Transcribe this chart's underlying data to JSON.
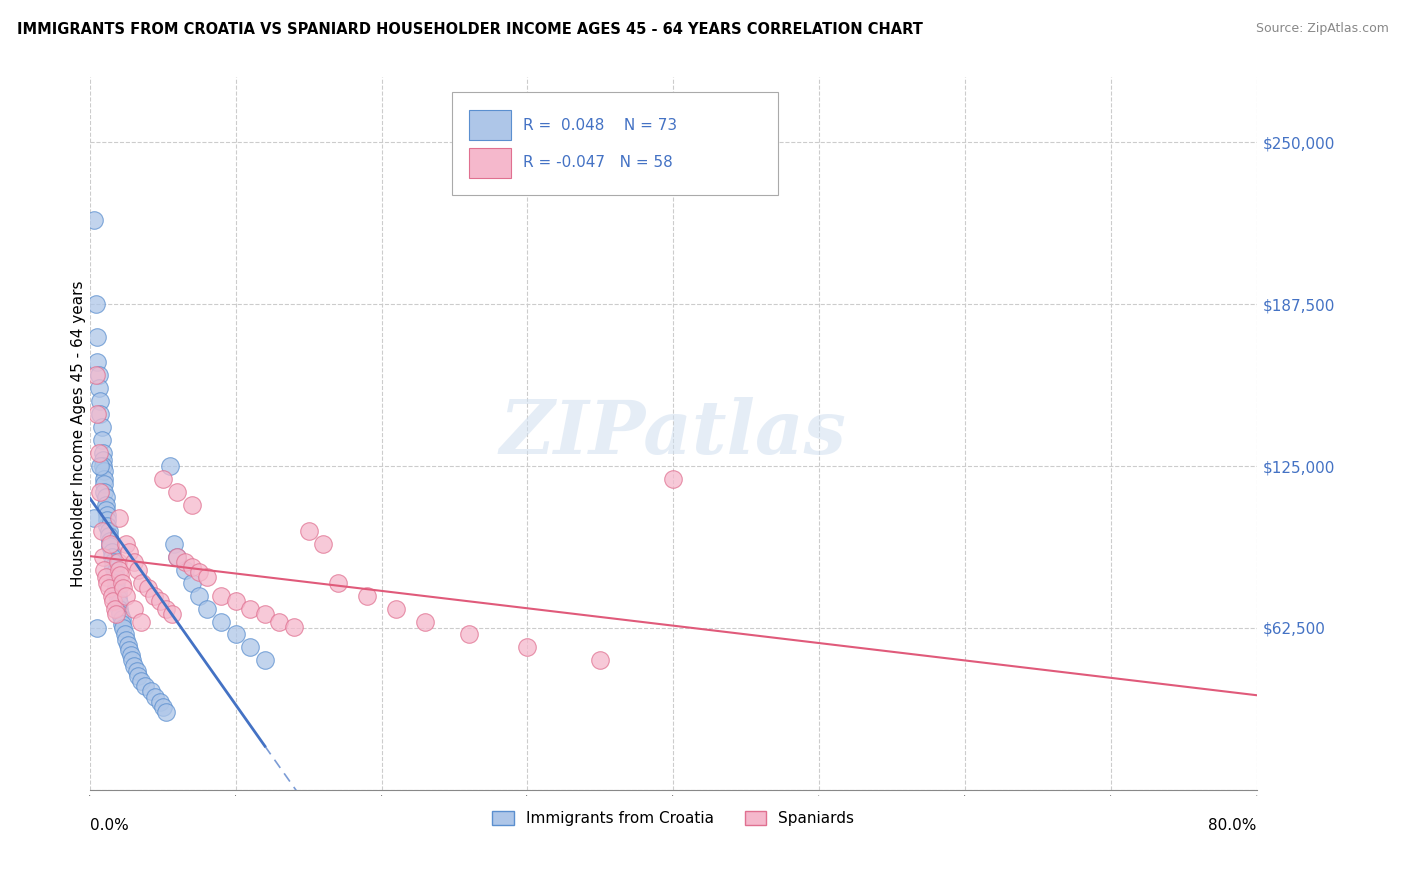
{
  "title": "IMMIGRANTS FROM CROATIA VS SPANIARD HOUSEHOLDER INCOME AGES 45 - 64 YEARS CORRELATION CHART",
  "source": "Source: ZipAtlas.com",
  "ylabel": "Householder Income Ages 45 - 64 years",
  "x_min": 0.0,
  "x_max": 0.8,
  "y_min": 0,
  "y_max": 275000,
  "y_ticks": [
    0,
    62500,
    125000,
    187500,
    250000
  ],
  "y_tick_labels": [
    "",
    "$62,500",
    "$125,000",
    "$187,500",
    "$250,000"
  ],
  "x_gridlines": [
    0.0,
    0.1,
    0.2,
    0.3,
    0.4,
    0.5,
    0.6,
    0.7,
    0.8
  ],
  "croatia_R": 0.048,
  "croatia_N": 73,
  "spaniard_R": -0.047,
  "spaniard_N": 58,
  "croatia_color": "#aec6e8",
  "croatia_edge_color": "#5b8fcf",
  "croatia_line_color": "#4472c4",
  "spaniard_color": "#f5b8cc",
  "spaniard_edge_color": "#e07090",
  "spaniard_line_color": "#e05a7a",
  "watermark_text": "ZIPatlas",
  "legend_label_croatia": "Immigrants from Croatia",
  "legend_label_spaniard": "Spaniards",
  "croatia_x": [
    0.003,
    0.004,
    0.005,
    0.005,
    0.006,
    0.006,
    0.007,
    0.007,
    0.008,
    0.008,
    0.009,
    0.009,
    0.009,
    0.01,
    0.01,
    0.01,
    0.01,
    0.011,
    0.011,
    0.011,
    0.012,
    0.012,
    0.012,
    0.013,
    0.013,
    0.014,
    0.014,
    0.015,
    0.015,
    0.016,
    0.016,
    0.017,
    0.017,
    0.018,
    0.018,
    0.019,
    0.019,
    0.02,
    0.02,
    0.021,
    0.022,
    0.022,
    0.023,
    0.024,
    0.025,
    0.026,
    0.027,
    0.028,
    0.029,
    0.03,
    0.032,
    0.033,
    0.035,
    0.038,
    0.042,
    0.045,
    0.048,
    0.05,
    0.052,
    0.055,
    0.058,
    0.06,
    0.065,
    0.07,
    0.075,
    0.08,
    0.09,
    0.1,
    0.11,
    0.12,
    0.003,
    0.005,
    0.007
  ],
  "croatia_y": [
    220000,
    187500,
    175000,
    165000,
    160000,
    155000,
    150000,
    145000,
    140000,
    135000,
    130000,
    127500,
    125000,
    123000,
    120000,
    118000,
    115000,
    113000,
    110000,
    108000,
    106000,
    104000,
    102000,
    100000,
    98000,
    96000,
    94000,
    92000,
    90000,
    88000,
    86000,
    84000,
    82000,
    80000,
    78000,
    76000,
    74000,
    72000,
    70000,
    68000,
    66000,
    64000,
    62500,
    60000,
    58000,
    56000,
    54000,
    52000,
    50000,
    48000,
    46000,
    44000,
    42000,
    40000,
    38000,
    36000,
    34000,
    32000,
    30000,
    125000,
    95000,
    90000,
    85000,
    80000,
    75000,
    70000,
    65000,
    60000,
    55000,
    50000,
    105000,
    62500,
    125000
  ],
  "spaniard_x": [
    0.004,
    0.005,
    0.006,
    0.007,
    0.008,
    0.009,
    0.01,
    0.011,
    0.012,
    0.013,
    0.014,
    0.015,
    0.016,
    0.017,
    0.018,
    0.019,
    0.02,
    0.021,
    0.022,
    0.023,
    0.025,
    0.027,
    0.03,
    0.033,
    0.036,
    0.04,
    0.044,
    0.048,
    0.052,
    0.056,
    0.06,
    0.065,
    0.07,
    0.075,
    0.08,
    0.09,
    0.1,
    0.11,
    0.12,
    0.13,
    0.14,
    0.15,
    0.16,
    0.17,
    0.19,
    0.21,
    0.23,
    0.26,
    0.3,
    0.35,
    0.02,
    0.025,
    0.03,
    0.035,
    0.05,
    0.06,
    0.07,
    0.4
  ],
  "spaniard_y": [
    160000,
    145000,
    130000,
    115000,
    100000,
    90000,
    85000,
    82000,
    80000,
    78000,
    95000,
    75000,
    73000,
    70000,
    68000,
    88000,
    85000,
    83000,
    80000,
    78000,
    95000,
    92000,
    88000,
    85000,
    80000,
    78000,
    75000,
    73000,
    70000,
    68000,
    90000,
    88000,
    86000,
    84000,
    82000,
    75000,
    73000,
    70000,
    68000,
    65000,
    63000,
    100000,
    95000,
    80000,
    75000,
    70000,
    65000,
    60000,
    55000,
    50000,
    105000,
    75000,
    70000,
    65000,
    120000,
    115000,
    110000,
    120000
  ]
}
